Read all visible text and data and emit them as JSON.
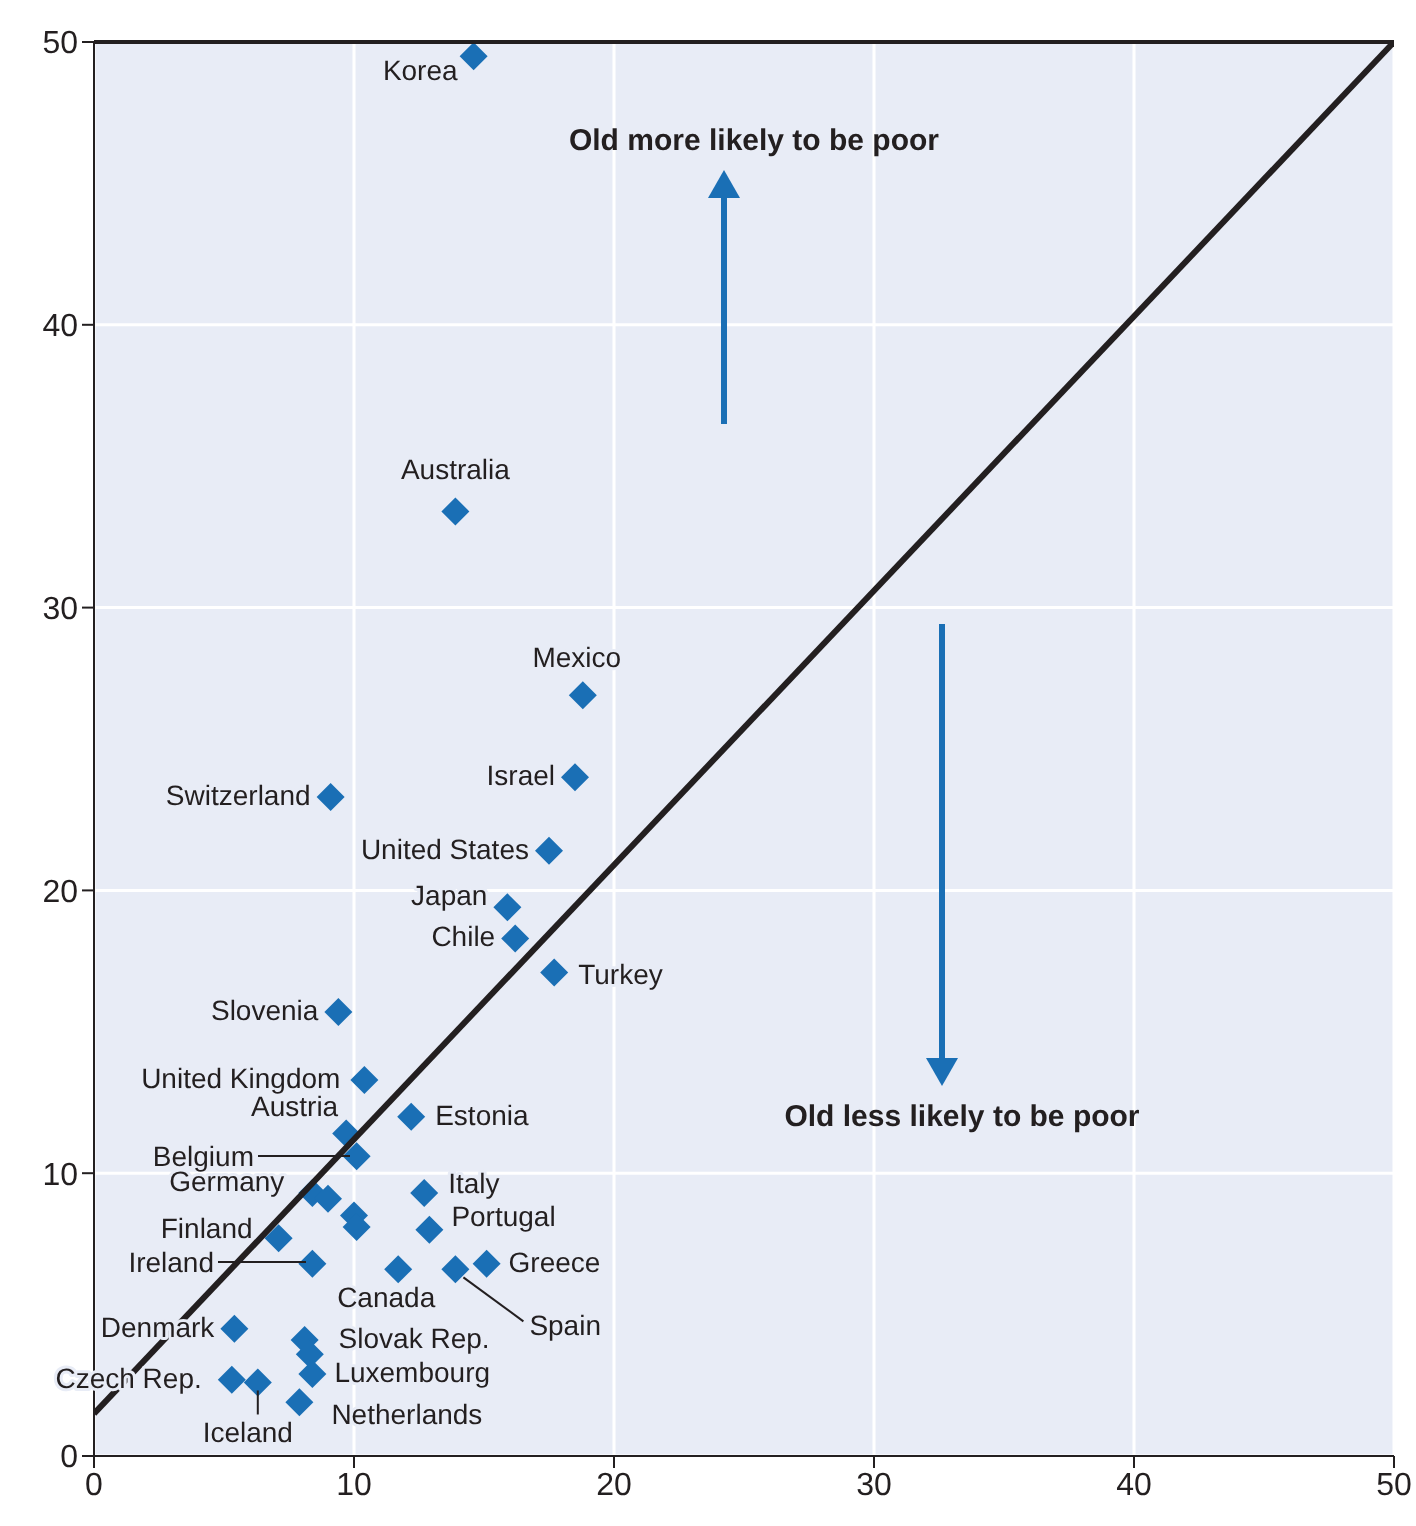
{
  "chart_data": {
    "type": "scatter",
    "xlim": [
      0,
      50
    ],
    "ylim": [
      0,
      50
    ],
    "xticks": [
      0,
      10,
      20,
      30,
      40,
      50
    ],
    "yticks": [
      0,
      10,
      20,
      30,
      40,
      50
    ],
    "grid": true,
    "legend": false,
    "marker": "diamond",
    "series": [
      {
        "type": "scatter",
        "color": "#1a6fb5",
        "x": [
          14.6,
          13.9,
          18.8,
          18.5,
          9.1,
          17.5,
          15.9,
          16.2,
          17.7,
          9.4,
          10.4,
          9.7,
          12.2,
          10.1,
          8.4,
          12.7,
          7.1,
          12.9,
          8.4,
          15.1,
          11.7,
          13.9,
          5.4,
          8.1,
          5.3,
          8.4,
          7.9,
          6.3,
          9.0,
          10.0,
          10.1,
          8.3
        ],
        "values": [
          49.5,
          33.4,
          26.9,
          24.0,
          23.3,
          21.4,
          19.4,
          18.3,
          17.1,
          15.7,
          13.3,
          11.4,
          12.0,
          10.6,
          9.3,
          9.3,
          7.7,
          8.0,
          6.8,
          6.8,
          6.6,
          6.6,
          4.5,
          4.1,
          2.7,
          2.9,
          1.9,
          2.6,
          9.1,
          8.5,
          8.1,
          3.6
        ]
      },
      {
        "type": "line",
        "color": "#231f20",
        "marker": "none",
        "x": [
          0,
          50
        ],
        "values": [
          1.5,
          50
        ]
      }
    ],
    "annotations": [
      "Old more likely to be poor",
      "Old less likely to be poor",
      "Belgium",
      "Ireland",
      {
        "text": "Korea",
        "x": 14.6,
        "y": 49.5
      },
      {
        "text": "Australia",
        "x": 13.9,
        "y": 33.4
      },
      {
        "text": "Mexico",
        "x": 18.8,
        "y": 26.9
      },
      {
        "text": "Israel",
        "x": 18.5,
        "y": 24.0
      },
      {
        "text": "Switzerland",
        "x": 9.1,
        "y": 23.3
      },
      {
        "text": "United States",
        "x": 17.5,
        "y": 21.4
      },
      {
        "text": "Japan",
        "x": 15.9,
        "y": 19.4
      },
      {
        "text": "Chile",
        "x": 16.2,
        "y": 18.3
      },
      {
        "text": "Turkey",
        "x": 17.7,
        "y": 17.1
      },
      {
        "text": "Slovenia",
        "x": 9.4,
        "y": 15.7
      },
      {
        "text": "United Kingdom",
        "x": 10.4,
        "y": 13.3
      },
      {
        "text": "Austria",
        "x": 9.7,
        "y": 11.4
      },
      {
        "text": "Estonia",
        "x": 12.2,
        "y": 12.0
      },
      {
        "text": "Germany",
        "x": 8.4,
        "y": 9.3
      },
      {
        "text": "Italy",
        "x": 12.7,
        "y": 9.3
      },
      {
        "text": "Finland",
        "x": 7.1,
        "y": 7.7
      },
      {
        "text": "Portugal",
        "x": 12.9,
        "y": 8.0
      },
      {
        "text": "Greece",
        "x": 15.1,
        "y": 6.8
      },
      {
        "text": "Canada",
        "x": 11.7,
        "y": 6.6
      },
      {
        "text": "Spain",
        "x": 13.9,
        "y": 6.6
      },
      {
        "text": "Denmark",
        "x": 5.4,
        "y": 4.5
      },
      {
        "text": "Slovak Rep.",
        "x": 8.1,
        "y": 4.1
      },
      {
        "text": "Czech Rep.",
        "x": 5.3,
        "y": 2.7
      },
      {
        "text": "Luxembourg",
        "x": 8.4,
        "y": 2.9
      },
      {
        "text": "Netherlands",
        "x": 7.9,
        "y": 1.9
      },
      {
        "text": "Iceland",
        "x": 6.3,
        "y": 2.6
      }
    ]
  }
}
